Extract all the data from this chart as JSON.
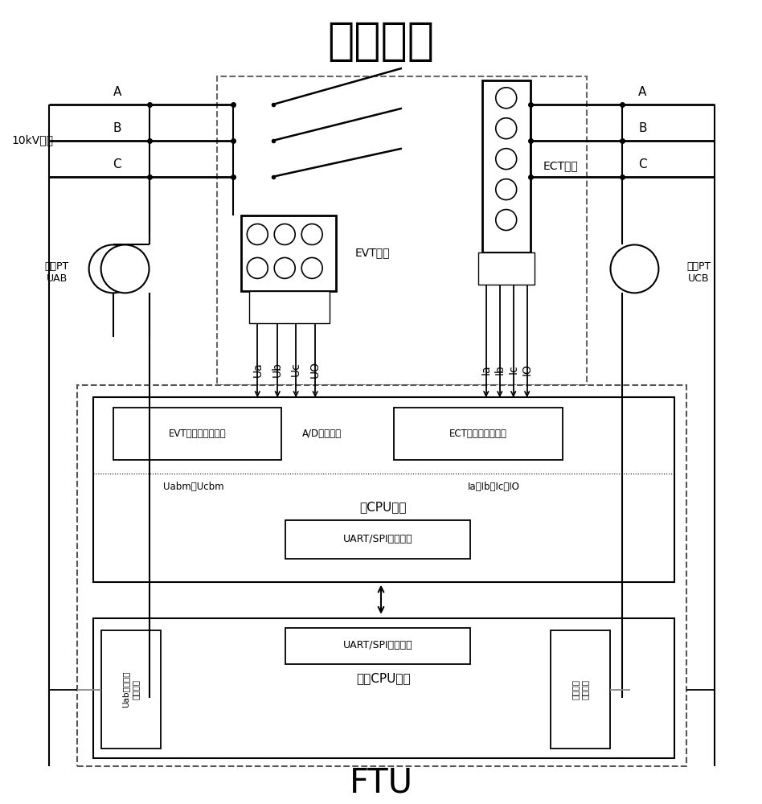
{
  "title_top": "柱上开关",
  "title_bottom": "FTU",
  "label_10kv": "10kV线路",
  "label_A": "A",
  "label_B": "B",
  "label_C": "C",
  "label_EVT": "EVT模块",
  "label_ECT": "ECT模块",
  "label_PT_left": "电源PT\nUAB",
  "label_PT_right": "电源PT\nUCB",
  "label_Ua": "Ua",
  "label_Ub": "Ub",
  "label_Uc": "Uc",
  "label_U0": "UO",
  "label_Ia": "Ia",
  "label_Ib": "Ib",
  "label_Ic": "Ic",
  "label_I0": "IO",
  "label_EVT_circuit": "EVT信号调整理回路",
  "label_AD": "A/D采样回路",
  "label_ECT_circuit": "ECT信号调整理回路",
  "label_Uabm": "Uabm、Ucbm",
  "label_Ia_etc": "Ia、Ib、Ic、IO",
  "label_mainCPU": "主CPU回路",
  "label_UART1": "UART/SPI通讯接口",
  "label_detectCPU": "检测CPU回路",
  "label_UART2": "UART/SPI通讯接口",
  "label_Uab": "Uab信号调理\n采样回路",
  "label_switch_control": "强制合闸\n驱动回路",
  "bg_color": "#ffffff"
}
